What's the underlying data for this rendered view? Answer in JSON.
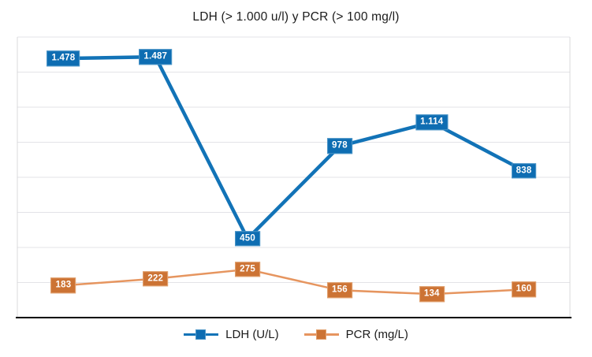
{
  "chart_data": {
    "type": "line",
    "title": "LDH (> 1.000 u/l) y PCR (> 100 mg/l)",
    "n_points": 6,
    "x_tick_labels_visible": false,
    "y_tick_labels_visible": false,
    "ylim": [
      0,
      1600
    ],
    "gridline_step": 200,
    "grid_on": true,
    "legend_position": "bottom",
    "colors": {
      "grid": "#E3E3E7",
      "plot_border": "#D8D8DB",
      "axis": "#000000",
      "background": "#FFFFFF",
      "label_text": "#FFFFFF"
    },
    "series": [
      {
        "name": "LDH (U/L)",
        "values": [
          1478,
          1487,
          450,
          978,
          1114,
          838
        ],
        "labels": [
          "1.478",
          "1.487",
          "450",
          "978",
          "1.114",
          "838"
        ],
        "color": "#0E6DB2",
        "line_color": "#1273B7",
        "label_border": "#4C96C8"
      },
      {
        "name": "PCR (mg/L)",
        "values": [
          183,
          222,
          275,
          156,
          134,
          160
        ],
        "labels": [
          "183",
          "222",
          "275",
          "156",
          "134",
          "160"
        ],
        "color": "#CC7334",
        "line_color": "#E6955F",
        "label_border": "#E2A16E"
      }
    ]
  }
}
